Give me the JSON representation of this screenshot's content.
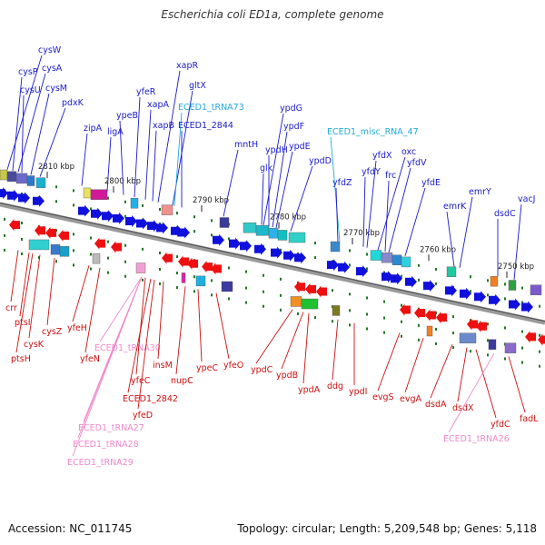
{
  "title": "Escherichia coli ED1a, complete genome",
  "footer": {
    "accession": "Accession: NC_011745",
    "summary": "Topology: circular; Length: 5,209,548 bp; Genes: 5,118"
  },
  "colors": {
    "top_label": "#1a1acc",
    "bottom_label": "#cc1010",
    "rna_top": "#22aadd",
    "rna_bottom": "#ee88cc",
    "scale": "#222222",
    "tick": "#227722"
  },
  "scale_labels": [
    "2810 kbp",
    "2800 kbp",
    "2790 kbp",
    "2780 kbp",
    "2770 kbp",
    "2760 kbp",
    "2750 kbp"
  ],
  "top_labels": [
    {
      "name": "cysW",
      "kind": "gene"
    },
    {
      "name": "cysA",
      "kind": "gene"
    },
    {
      "name": "cysP",
      "kind": "gene"
    },
    {
      "name": "cysU",
      "kind": "gene"
    },
    {
      "name": "cysM",
      "kind": "gene"
    },
    {
      "name": "pdxK",
      "kind": "gene"
    },
    {
      "name": "zipA",
      "kind": "gene"
    },
    {
      "name": "ligA",
      "kind": "gene"
    },
    {
      "name": "ypeB",
      "kind": "gene"
    },
    {
      "name": "yfeR",
      "kind": "gene"
    },
    {
      "name": "xapA",
      "kind": "gene"
    },
    {
      "name": "xapB",
      "kind": "gene"
    },
    {
      "name": "xapR",
      "kind": "gene"
    },
    {
      "name": "gltX",
      "kind": "gene"
    },
    {
      "name": "ECED1_tRNA73",
      "kind": "rna"
    },
    {
      "name": "ECED1_2844",
      "kind": "gene"
    },
    {
      "name": "mntH",
      "kind": "gene"
    },
    {
      "name": "ypdG",
      "kind": "gene"
    },
    {
      "name": "ypdF",
      "kind": "gene"
    },
    {
      "name": "ypdH",
      "kind": "gene"
    },
    {
      "name": "ypdE",
      "kind": "gene"
    },
    {
      "name": "glk",
      "kind": "gene"
    },
    {
      "name": "ypdD",
      "kind": "gene"
    },
    {
      "name": "ECED1_misc_RNA_47",
      "kind": "rna"
    },
    {
      "name": "yfdX",
      "kind": "gene"
    },
    {
      "name": "oxc",
      "kind": "gene"
    },
    {
      "name": "yfdY",
      "kind": "gene"
    },
    {
      "name": "yfdV",
      "kind": "gene"
    },
    {
      "name": "frc",
      "kind": "gene"
    },
    {
      "name": "yfdZ",
      "kind": "gene"
    },
    {
      "name": "yfdE",
      "kind": "gene"
    },
    {
      "name": "emrY",
      "kind": "gene"
    },
    {
      "name": "emrK",
      "kind": "gene"
    },
    {
      "name": "vacJ",
      "kind": "gene"
    },
    {
      "name": "dsdC",
      "kind": "gene"
    }
  ],
  "bottom_labels": [
    {
      "name": "crr",
      "kind": "gene"
    },
    {
      "name": "ptsI",
      "kind": "gene"
    },
    {
      "name": "cysK",
      "kind": "gene"
    },
    {
      "name": "cysZ",
      "kind": "gene"
    },
    {
      "name": "ptsH",
      "kind": "gene"
    },
    {
      "name": "yfeH",
      "kind": "gene"
    },
    {
      "name": "yfeN",
      "kind": "gene"
    },
    {
      "name": "ECED1_tRNA30",
      "kind": "rna"
    },
    {
      "name": "yfeC",
      "kind": "gene"
    },
    {
      "name": "insM",
      "kind": "gene"
    },
    {
      "name": "ECED1_2842",
      "kind": "gene"
    },
    {
      "name": "yfeD",
      "kind": "gene"
    },
    {
      "name": "ECED1_tRNA27",
      "kind": "rna"
    },
    {
      "name": "ECED1_tRNA28",
      "kind": "rna"
    },
    {
      "name": "ECED1_tRNA29",
      "kind": "rna"
    },
    {
      "name": "ypeC",
      "kind": "gene"
    },
    {
      "name": "nupC",
      "kind": "gene"
    },
    {
      "name": "yfeO",
      "kind": "gene"
    },
    {
      "name": "ypdC",
      "kind": "gene"
    },
    {
      "name": "ypdB",
      "kind": "gene"
    },
    {
      "name": "ypdA",
      "kind": "gene"
    },
    {
      "name": "ddg",
      "kind": "gene"
    },
    {
      "name": "ypdI",
      "kind": "gene"
    },
    {
      "name": "evgS",
      "kind": "gene"
    },
    {
      "name": "evgA",
      "kind": "gene"
    },
    {
      "name": "dsdA",
      "kind": "gene"
    },
    {
      "name": "dsdX",
      "kind": "gene"
    },
    {
      "name": "yfdC",
      "kind": "gene"
    },
    {
      "name": "ECED1_tRNA26",
      "kind": "rna"
    },
    {
      "name": "fadL",
      "kind": "gene"
    }
  ]
}
